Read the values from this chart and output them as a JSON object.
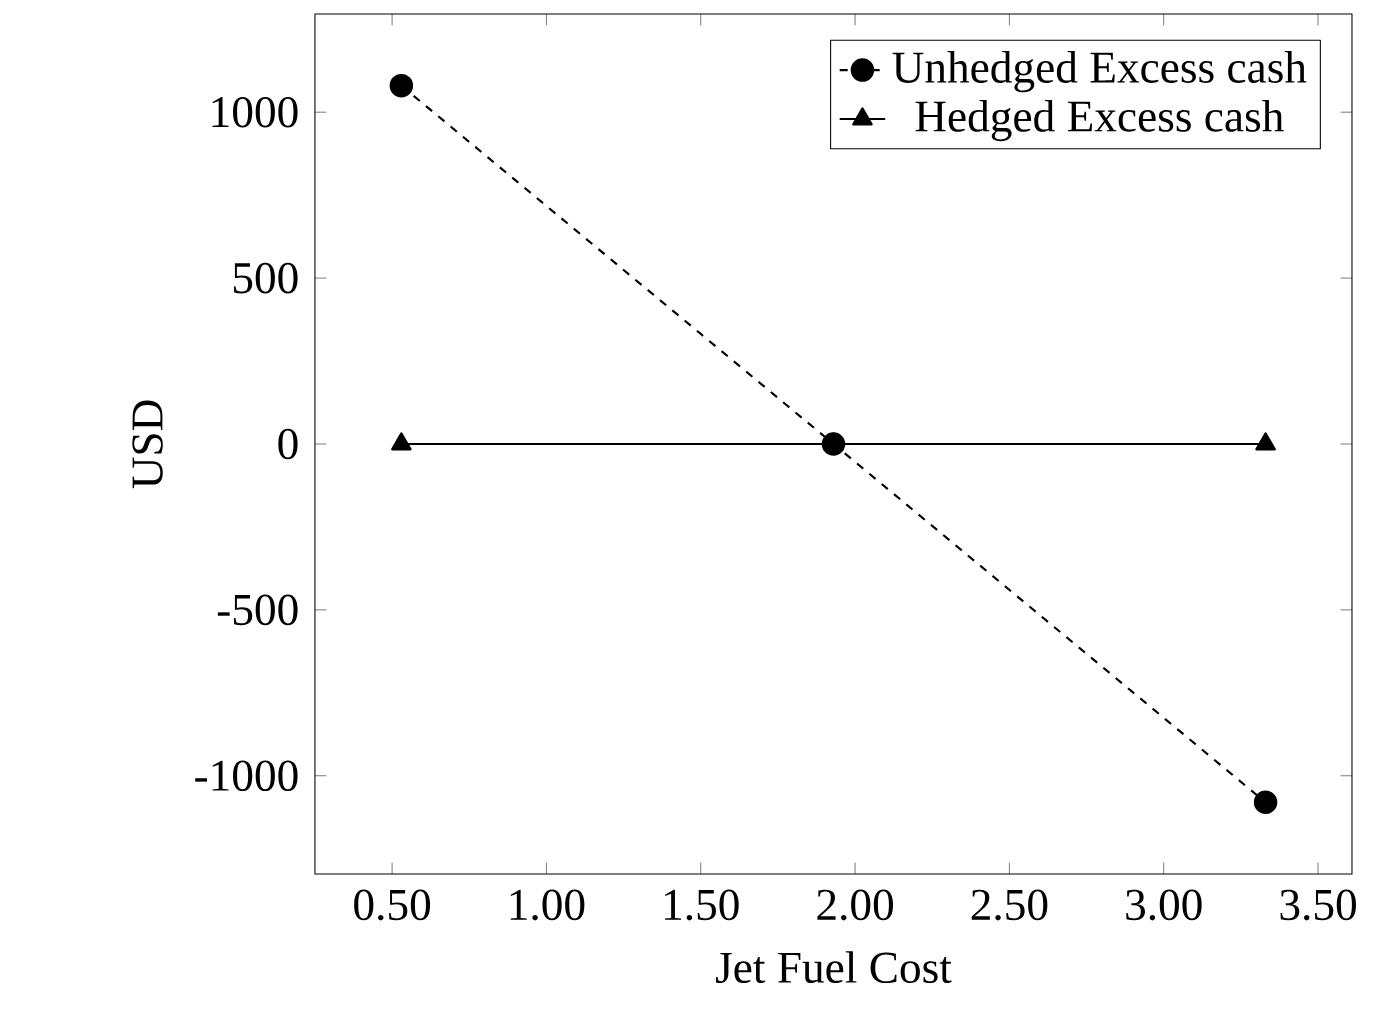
{
  "chart_data": {
    "type": "line",
    "xlabel": "Jet Fuel Cost",
    "ylabel": "USD",
    "x": [
      0.53,
      1.93,
      3.33
    ],
    "series": [
      {
        "name": "Unhedged Excess cash",
        "color": "#000000",
        "values": [
          1080,
          0,
          -1080
        ],
        "marker": "circle",
        "line_style": "dashed"
      },
      {
        "name": "Hedged Excess cash",
        "color": "#000000",
        "values": [
          0,
          0,
          0
        ],
        "marker": "triangle",
        "line_style": "solid"
      }
    ],
    "xlim": [
      0.25,
      3.61
    ],
    "ylim": [
      -1296,
      1296
    ],
    "xticks": [
      {
        "value": 0.5,
        "label": "0.50"
      },
      {
        "value": 1.0,
        "label": "1.00"
      },
      {
        "value": 1.5,
        "label": "1.50"
      },
      {
        "value": 2.0,
        "label": "2.00"
      },
      {
        "value": 2.5,
        "label": "2.50"
      },
      {
        "value": 3.0,
        "label": "3.00"
      },
      {
        "value": 3.5,
        "label": "3.50"
      }
    ],
    "yticks": [
      -1000,
      -500,
      0,
      500,
      1000
    ],
    "legend": "top right",
    "grid": false
  }
}
